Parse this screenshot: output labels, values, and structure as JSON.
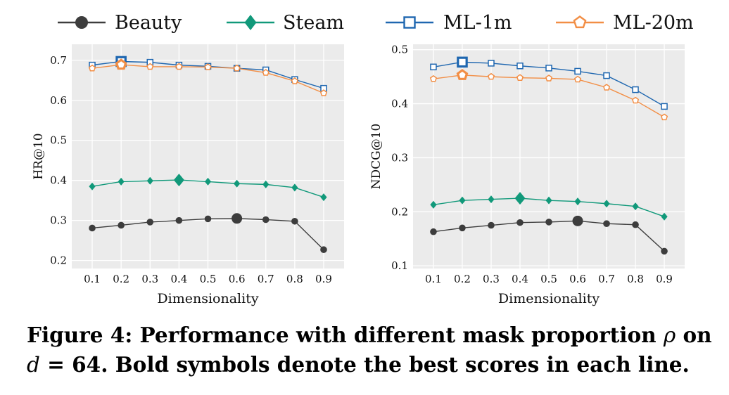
{
  "legend": [
    {
      "name": "Beauty",
      "color": "#3d3d3d",
      "marker": "circle-filled"
    },
    {
      "name": "Steam",
      "color": "#11997a",
      "marker": "diamond-filled"
    },
    {
      "name": "ML-1m",
      "color": "#1f67b0",
      "marker": "square-open"
    },
    {
      "name": "ML-20m",
      "color": "#f28e45",
      "marker": "pentagon-open"
    }
  ],
  "chart_data": [
    {
      "type": "line",
      "xlabel": "Dimensionality",
      "ylabel": "HR@10",
      "x": [
        0.1,
        0.2,
        0.3,
        0.4,
        0.5,
        0.6,
        0.7,
        0.8,
        0.9
      ],
      "xticks": [
        "0.1",
        "0.2",
        "0.3",
        "0.4",
        "0.5",
        "0.6",
        "0.7",
        "0.8",
        "0.9"
      ],
      "ylim": [
        0.18,
        0.74
      ],
      "yticks": [
        0.2,
        0.3,
        0.4,
        0.5,
        0.6,
        0.7
      ],
      "ytick_labels": [
        "0.2",
        "0.3",
        "0.4",
        "0.5",
        "0.6",
        "0.7"
      ],
      "grid": true,
      "series": [
        {
          "name": "Beauty",
          "values": [
            0.281,
            0.288,
            0.296,
            0.3,
            0.304,
            0.305,
            0.302,
            0.298,
            0.227
          ],
          "best_index": 5
        },
        {
          "name": "Steam",
          "values": [
            0.385,
            0.397,
            0.399,
            0.401,
            0.397,
            0.392,
            0.39,
            0.382,
            0.358
          ],
          "best_index": 3
        },
        {
          "name": "ML-1m",
          "values": [
            0.688,
            0.697,
            0.695,
            0.688,
            0.685,
            0.68,
            0.676,
            0.652,
            0.63
          ],
          "best_index": 1
        },
        {
          "name": "ML-20m",
          "values": [
            0.68,
            0.689,
            0.684,
            0.684,
            0.683,
            0.68,
            0.669,
            0.648,
            0.618
          ],
          "best_index": 1
        }
      ]
    },
    {
      "type": "line",
      "xlabel": "Dimensionality",
      "ylabel": "NDCG@10",
      "x": [
        0.1,
        0.2,
        0.3,
        0.4,
        0.5,
        0.6,
        0.7,
        0.8,
        0.9
      ],
      "xticks": [
        "0.1",
        "0.2",
        "0.3",
        "0.4",
        "0.5",
        "0.6",
        "0.7",
        "0.8",
        "0.9"
      ],
      "ylim": [
        0.095,
        0.51
      ],
      "yticks": [
        0.1,
        0.2,
        0.3,
        0.4,
        0.5
      ],
      "ytick_labels": [
        "0.1",
        "0.2",
        "0.3",
        "0.4",
        "0.5"
      ],
      "grid": true,
      "series": [
        {
          "name": "Beauty",
          "values": [
            0.163,
            0.17,
            0.175,
            0.18,
            0.181,
            0.183,
            0.178,
            0.176,
            0.127
          ],
          "best_index": 5
        },
        {
          "name": "Steam",
          "values": [
            0.213,
            0.221,
            0.223,
            0.225,
            0.221,
            0.219,
            0.215,
            0.21,
            0.191
          ],
          "best_index": 3
        },
        {
          "name": "ML-1m",
          "values": [
            0.468,
            0.477,
            0.475,
            0.47,
            0.466,
            0.46,
            0.452,
            0.426,
            0.395
          ],
          "best_index": 1
        },
        {
          "name": "ML-20m",
          "values": [
            0.446,
            0.453,
            0.45,
            0.448,
            0.447,
            0.445,
            0.43,
            0.406,
            0.375
          ],
          "best_index": 1
        }
      ]
    }
  ],
  "caption": {
    "part1": "Figure 4: Performance with different mask proportion ",
    "rho": "ρ",
    "part2": " on",
    "d": "d",
    "part3": " = 64. Bold symbols denote the best scores in each line."
  }
}
